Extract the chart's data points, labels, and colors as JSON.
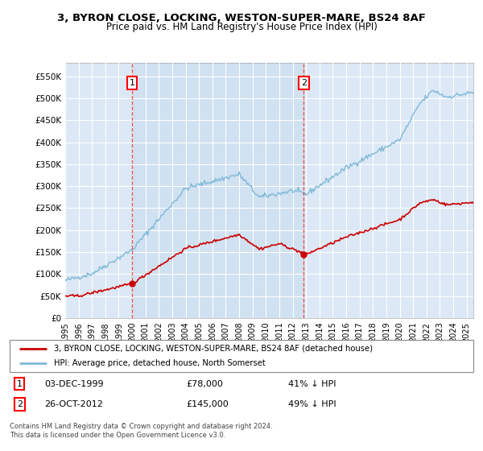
{
  "title": "3, BYRON CLOSE, LOCKING, WESTON-SUPER-MARE, BS24 8AF",
  "subtitle": "Price paid vs. HM Land Registry's House Price Index (HPI)",
  "bg_color": "#dce8f5",
  "plot_bg_color": "#dce8f5",
  "highlight_color": "#ccdff0",
  "grid_color": "#ffffff",
  "ylim": [
    0,
    580000
  ],
  "yticks": [
    0,
    50000,
    100000,
    150000,
    200000,
    250000,
    300000,
    350000,
    400000,
    450000,
    500000,
    550000
  ],
  "ytick_labels": [
    "£0",
    "£50K",
    "£100K",
    "£150K",
    "£200K",
    "£250K",
    "£300K",
    "£350K",
    "£400K",
    "£450K",
    "£500K",
    "£550K"
  ],
  "sale1_price": 78000,
  "sale1_x": 2000.0,
  "sale2_price": 145000,
  "sale2_x": 2012.83,
  "legend_line1": "3, BYRON CLOSE, LOCKING, WESTON-SUPER-MARE, BS24 8AF (detached house)",
  "legend_line2": "HPI: Average price, detached house, North Somerset",
  "footer": "Contains HM Land Registry data © Crown copyright and database right 2024.\nThis data is licensed under the Open Government Licence v3.0.",
  "hpi_color": "#7eb8d8",
  "sale_color": "#cc0000",
  "xmin": 1995,
  "xmax": 2025.5
}
